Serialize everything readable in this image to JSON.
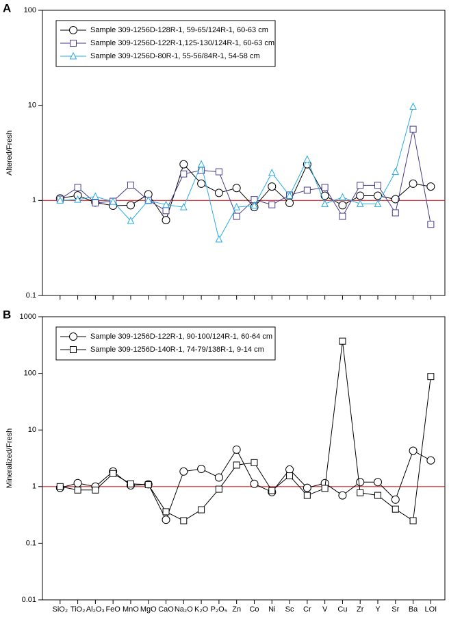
{
  "chart_data": [
    {
      "type": "line",
      "panel_label": "A",
      "y_label": "Altered/Fresh",
      "log_y": true,
      "ylim": [
        0.1,
        100
      ],
      "yticks": [
        0.1,
        1,
        10,
        100
      ],
      "reference_line": 1,
      "reference_color": "#e0262b",
      "legend": "upper left",
      "series": [
        {
          "name": "Sample 309-1256D-128R-1, 59-65/124R-1, 60-63 cm",
          "color": "#000000",
          "marker": "circle",
          "values": [
            1.05,
            1.13,
            0.95,
            0.88,
            0.89,
            1.16,
            0.62,
            2.4,
            1.5,
            1.2,
            1.35,
            0.85,
            1.4,
            0.94,
            2.4,
            1.12,
            0.89,
            1.12,
            1.12,
            1.03,
            1.5,
            1.4
          ]
        },
        {
          "name": "Sample 309-1256D-122R-1,125-130/124R-1, 60-63 cm",
          "color": "#463a8a",
          "marker": "square",
          "values": [
            1.03,
            1.37,
            0.94,
            0.98,
            1.45,
            1.0,
            0.78,
            1.9,
            2.07,
            2.0,
            0.68,
            1.02,
            0.9,
            1.14,
            1.28,
            1.37,
            0.68,
            1.44,
            1.44,
            0.74,
            5.6,
            0.56
          ]
        },
        {
          "name": "Sample 309-1256D-80R-1, 55-56/84R-1, 54-58 cm",
          "color": "#29abe2",
          "marker": "triangle",
          "values": [
            1.0,
            1.02,
            1.1,
            0.97,
            0.61,
            1.0,
            0.9,
            0.85,
            2.4,
            0.39,
            0.85,
            0.88,
            1.95,
            1.12,
            2.7,
            0.92,
            1.08,
            0.92,
            0.92,
            2.0,
            9.7,
            null
          ]
        }
      ]
    },
    {
      "type": "line",
      "panel_label": "B",
      "y_label": "Mineralized/Fresh",
      "log_y": true,
      "categories": [
        "SiO₂",
        "TiO₂",
        "Al₂O₃",
        "FeO",
        "MnO",
        "MgO",
        "CaO",
        "Na₂O",
        "K₂O",
        "P₂O₅",
        "Zn",
        "Co",
        "Ni",
        "Sc",
        "Cr",
        "V",
        "Cu",
        "Zr",
        "Y",
        "Sr",
        "Ba",
        "LOI"
      ],
      "ylim": [
        0.01,
        1000
      ],
      "yticks": [
        0.01,
        0.1,
        1,
        10,
        100,
        1000
      ],
      "reference_line": 1,
      "reference_color": "#e0262b",
      "legend": "upper left",
      "series": [
        {
          "name": "Sample 309-1256D-122R-1, 90-100/124R-1, 60-64 cm",
          "color": "#000000",
          "marker": "circle",
          "values": [
            0.95,
            1.15,
            1.0,
            1.85,
            1.05,
            1.1,
            0.26,
            1.85,
            2.05,
            1.45,
            4.5,
            1.12,
            0.8,
            2.0,
            0.95,
            1.15,
            0.7,
            1.2,
            1.2,
            0.59,
            4.3,
            2.9
          ]
        },
        {
          "name": "Sample 309-1256D-140R-1, 74-79/138R-1, 9-14 cm",
          "color": "#000000",
          "marker": "square",
          "values": [
            1.0,
            0.87,
            0.87,
            1.7,
            1.12,
            1.08,
            0.36,
            0.25,
            0.39,
            0.9,
            2.4,
            2.65,
            0.85,
            1.55,
            0.7,
            0.93,
            370,
            0.78,
            0.7,
            0.4,
            0.25,
            88
          ]
        }
      ]
    }
  ]
}
